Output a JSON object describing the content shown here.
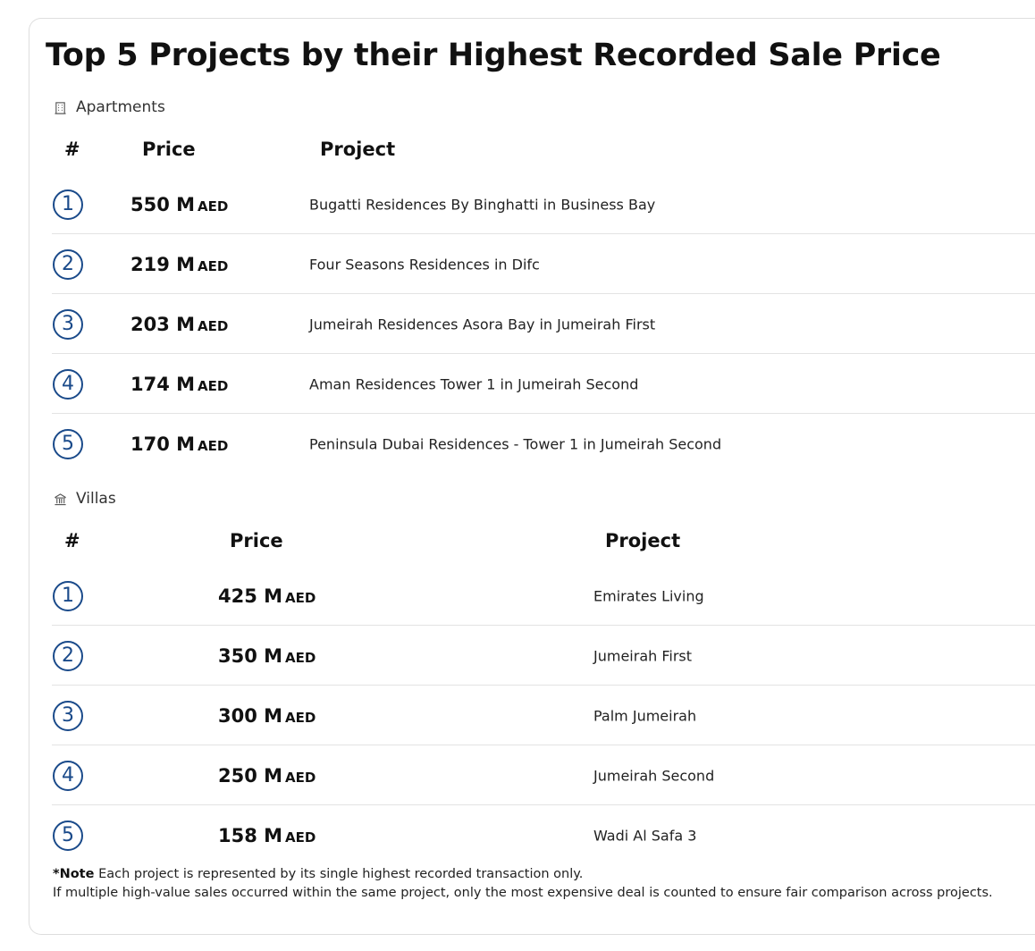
{
  "title": "Top 5 Projects by their Highest Recorded Sale Price",
  "headers": {
    "rank": "#",
    "price": "Price",
    "project": "Project"
  },
  "apartments": {
    "label": "Apartments",
    "icon": "building-icon",
    "rows": [
      {
        "rank": "1",
        "price": "550 M",
        "currency": "AED",
        "project": "Bugatti Residences By Binghatti in Business Bay"
      },
      {
        "rank": "2",
        "price": "219 M",
        "currency": "AED",
        "project": "Four Seasons Residences in Difc"
      },
      {
        "rank": "3",
        "price": "203 M",
        "currency": "AED",
        "project": "Jumeirah Residences Asora Bay in Jumeirah First"
      },
      {
        "rank": "4",
        "price": "174 M",
        "currency": "AED",
        "project": "Aman Residences Tower 1 in Jumeirah Second"
      },
      {
        "rank": "5",
        "price": "170 M",
        "currency": "AED",
        "project": "Peninsula Dubai Residences - Tower 1 in Jumeirah Second"
      }
    ]
  },
  "villas": {
    "label": "Villas",
    "icon": "villa-icon",
    "rows": [
      {
        "rank": "1",
        "price": "425 M",
        "currency": "AED",
        "project": "Emirates Living"
      },
      {
        "rank": "2",
        "price": "350 M",
        "currency": "AED",
        "project": "Jumeirah First"
      },
      {
        "rank": "3",
        "price": "300 M",
        "currency": "AED",
        "project": "Palm Jumeirah"
      },
      {
        "rank": "4",
        "price": "250 M",
        "currency": "AED",
        "project": "Jumeirah Second"
      },
      {
        "rank": "5",
        "price": "158 M",
        "currency": "AED",
        "project": "Wadi Al Safa 3"
      }
    ]
  },
  "note": {
    "label": "*Note",
    "line1": "Each project is represented by its single highest recorded transaction only.",
    "line2": "If multiple high-value sales occurred within the same project, only the most expensive deal is counted to ensure fair comparison across projects."
  },
  "colors": {
    "rank_accent": "#1a4a8a",
    "divider": "#e3e3e3"
  }
}
